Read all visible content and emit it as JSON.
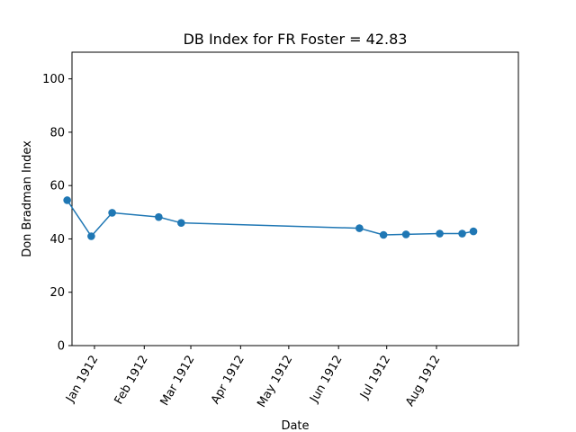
{
  "chart_data": {
    "type": "line",
    "title": "DB Index for FR Foster = 42.83",
    "xlabel": "Date",
    "ylabel": "Don Bradman Index",
    "ylim": [
      0,
      110
    ],
    "xlim": [
      "1911-12-18",
      "1912-09-21"
    ],
    "yticks": [
      0,
      20,
      40,
      60,
      80,
      100
    ],
    "xticks": [
      {
        "date": "1912-01-01",
        "label": "Jan 1912"
      },
      {
        "date": "1912-02-01",
        "label": "Feb 1912"
      },
      {
        "date": "1912-03-01",
        "label": "Mar 1912"
      },
      {
        "date": "1912-04-01",
        "label": "Apr 1912"
      },
      {
        "date": "1912-05-01",
        "label": "May 1912"
      },
      {
        "date": "1912-06-01",
        "label": "Jun 1912"
      },
      {
        "date": "1912-07-01",
        "label": "Jul 1912"
      },
      {
        "date": "1912-08-01",
        "label": "Aug 1912"
      }
    ],
    "series": [
      {
        "color": "#1f77b4",
        "points": [
          {
            "x": "1911-12-15",
            "y": 54.5
          },
          {
            "x": "1911-12-30",
            "y": 41.0
          },
          {
            "x": "1912-01-12",
            "y": 49.8
          },
          {
            "x": "1912-02-10",
            "y": 48.2
          },
          {
            "x": "1912-02-24",
            "y": 46.0
          },
          {
            "x": "1912-06-14",
            "y": 44.0
          },
          {
            "x": "1912-06-29",
            "y": 41.5
          },
          {
            "x": "1912-07-13",
            "y": 41.7
          },
          {
            "x": "1912-08-03",
            "y": 42.0
          },
          {
            "x": "1912-08-17",
            "y": 42.0
          },
          {
            "x": "1912-08-24",
            "y": 42.83
          }
        ]
      }
    ]
  }
}
